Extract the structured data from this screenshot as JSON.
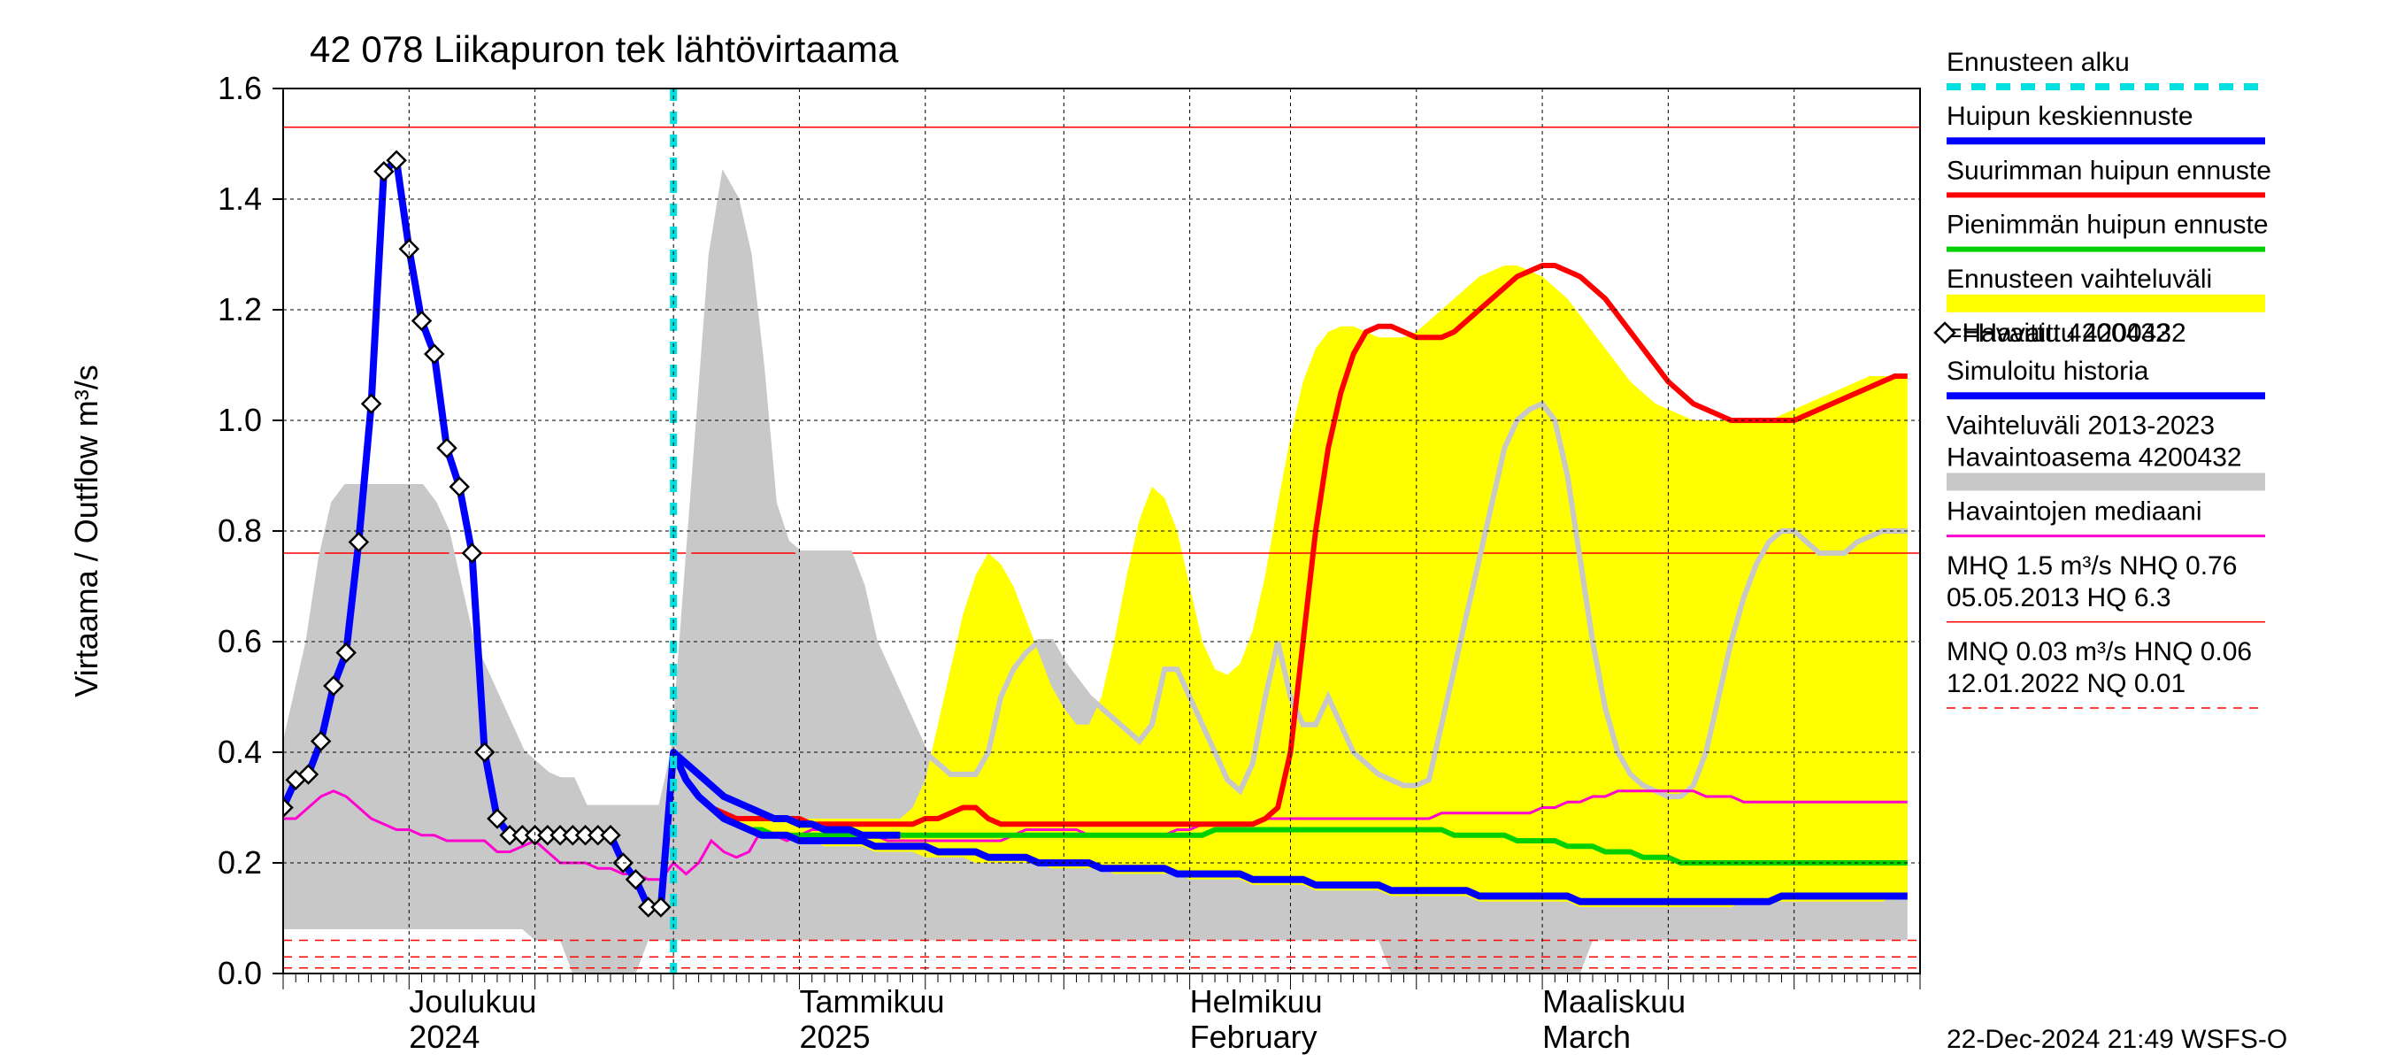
{
  "chart": {
    "title": "42 078 Liikapuron tek lähtövirtaama",
    "title_fontsize": 42,
    "ylabel": "Virtaama / Outflow    m³/s",
    "ylabel_fontsize": 36,
    "ylim": [
      0.0,
      1.6
    ],
    "ytick_step": 0.2,
    "yticks": [
      "0.0",
      "0.2",
      "0.4",
      "0.6",
      "0.8",
      "1.0",
      "1.2",
      "1.4",
      "1.6"
    ],
    "xrange_days": 130,
    "x_major_ticks": [
      {
        "pos": 10,
        "label_top": "Joulukuu",
        "label_bottom": "2024"
      },
      {
        "pos": 41,
        "label_top": "Tammikuu",
        "label_bottom": "2025"
      },
      {
        "pos": 72,
        "label_top": "Helmikuu",
        "label_bottom": "February"
      },
      {
        "pos": 100,
        "label_top": "Maaliskuu",
        "label_bottom": "March"
      }
    ],
    "x_minor_step": 1,
    "x_sub_major": [
      0,
      10,
      20,
      31,
      41,
      51,
      62,
      72,
      80,
      90,
      100,
      110,
      120,
      130
    ],
    "forecast_start_day": 31,
    "background_color": "#ffffff",
    "grid_color": "#000000",
    "grid_dash": "4,4",
    "footer": "22-Dec-2024 21:49 WSFS-O",
    "colors": {
      "forecast_start": "#00e0e0",
      "peak_mean": "#0000ff",
      "peak_max": "#ff0000",
      "peak_min": "#00d000",
      "forecast_band": "#ffff00",
      "observed_marker": "#000000",
      "observed_marker_fill": "#ffffff",
      "sim_history": "#0000ff",
      "hist_band": "#c8c8c8",
      "hist_median": "#ff00d0",
      "mhq_line": "#ff0000",
      "mnq_line": "#ff0000"
    },
    "line_widths": {
      "peak_mean": 8,
      "peak_max": 6,
      "peak_min": 6,
      "sim_history": 8,
      "hist_median": 3,
      "mhq": 1.5,
      "mnq": 1.5,
      "forecast_start": 8
    },
    "mhq_value": 1.53,
    "mhq2_value": 0.76,
    "mnq_values": [
      0.03,
      0.06,
      0.01
    ]
  },
  "legend": {
    "items": [
      {
        "label": "Ennusteen alku",
        "type": "dashed",
        "color": "#00e0e0",
        "width": 8
      },
      {
        "label": "Huipun keskiennuste",
        "type": "line",
        "color": "#0000ff",
        "width": 8
      },
      {
        "label": "Suurimman huipun ennuste",
        "type": "line",
        "color": "#ff0000",
        "width": 6
      },
      {
        "label": "Pienimmän huipun ennuste",
        "type": "line",
        "color": "#00d000",
        "width": 6
      },
      {
        "label": "Ennusteen vaihteluväli",
        "type": "band",
        "color": "#ffff00"
      },
      {
        "label": "=Havaittu 4200432",
        "type": "marker",
        "color": "#000000",
        "prefix_marker": true
      },
      {
        "label": "Simuloitu historia",
        "type": "line",
        "color": "#0000ff",
        "width": 8
      },
      {
        "label": "Vaihteluväli 2013-2023",
        "type": "none"
      },
      {
        "label": " Havaintoasema 4200432",
        "type": "band",
        "color": "#c8c8c8"
      },
      {
        "label": "Havaintojen mediaani",
        "type": "line",
        "color": "#ff00d0",
        "width": 3
      },
      {
        "label": "MHQ  1.5 m³/s NHQ 0.76",
        "type": "none"
      },
      {
        "label": "05.05.2013 HQ  6.3",
        "type": "line",
        "color": "#ff0000",
        "width": 1.5
      },
      {
        "label": "MNQ 0.03 m³/s HNQ 0.06",
        "type": "none"
      },
      {
        "label": "12.01.2022 NQ 0.01",
        "type": "dashed-thin",
        "color": "#ff0000",
        "width": 1.5
      }
    ]
  },
  "series": {
    "hist_band_upper": [
      0.4,
      0.5,
      0.6,
      0.75,
      0.85,
      0.88,
      0.88,
      0.88,
      0.88,
      0.88,
      0.88,
      0.88,
      0.85,
      0.8,
      0.7,
      0.6,
      0.55,
      0.5,
      0.45,
      0.4,
      0.38,
      0.36,
      0.35,
      0.35,
      0.3,
      0.3,
      0.3,
      0.3,
      0.3,
      0.3,
      0.3,
      0.4,
      0.7,
      1.0,
      1.3,
      1.44,
      1.4,
      1.3,
      1.1,
      0.85,
      0.78,
      0.76,
      0.76,
      0.76,
      0.76,
      0.76,
      0.7,
      0.6,
      0.55,
      0.5,
      0.45,
      0.4,
      0.38,
      0.36,
      0.36,
      0.36,
      0.4,
      0.5,
      0.55,
      0.58,
      0.6,
      0.6,
      0.56,
      0.53,
      0.5,
      0.48,
      0.46,
      0.44,
      0.42,
      0.45,
      0.55,
      0.55,
      0.5,
      0.45,
      0.4,
      0.35,
      0.33,
      0.38,
      0.5,
      0.6,
      0.5,
      0.45,
      0.45,
      0.5,
      0.45,
      0.4,
      0.38,
      0.36,
      0.35,
      0.34,
      0.34,
      0.35,
      0.45,
      0.55,
      0.65,
      0.75,
      0.85,
      0.95,
      1.0,
      1.02,
      1.03,
      1.0,
      0.9,
      0.75,
      0.6,
      0.48,
      0.4,
      0.36,
      0.34,
      0.33,
      0.32,
      0.32,
      0.34,
      0.4,
      0.5,
      0.6,
      0.68,
      0.74,
      0.78,
      0.8,
      0.8,
      0.78,
      0.76,
      0.76,
      0.76,
      0.78,
      0.79,
      0.8,
      0.8,
      0.8
    ],
    "hist_band_lower": [
      0.08,
      0.08,
      0.08,
      0.08,
      0.08,
      0.08,
      0.08,
      0.08,
      0.08,
      0.08,
      0.08,
      0.08,
      0.08,
      0.08,
      0.08,
      0.08,
      0.08,
      0.08,
      0.08,
      0.08,
      0.06,
      0.06,
      0.06,
      0.0,
      0.0,
      0.0,
      0.0,
      0.0,
      0.0,
      0.06,
      0.06,
      0.06,
      0.06,
      0.06,
      0.06,
      0.06,
      0.06,
      0.06,
      0.06,
      0.06,
      0.06,
      0.06,
      0.06,
      0.06,
      0.06,
      0.06,
      0.06,
      0.06,
      0.06,
      0.06,
      0.06,
      0.06,
      0.06,
      0.06,
      0.06,
      0.06,
      0.06,
      0.06,
      0.06,
      0.06,
      0.06,
      0.06,
      0.06,
      0.06,
      0.06,
      0.06,
      0.06,
      0.06,
      0.06,
      0.06,
      0.06,
      0.06,
      0.06,
      0.06,
      0.06,
      0.06,
      0.06,
      0.06,
      0.06,
      0.06,
      0.06,
      0.06,
      0.06,
      0.06,
      0.06,
      0.06,
      0.06,
      0.06,
      0.0,
      0.0,
      0.0,
      0.0,
      0.0,
      0.0,
      0.0,
      0.0,
      0.0,
      0.0,
      0.0,
      0.0,
      0.0,
      0.0,
      0.0,
      0.0,
      0.06,
      0.06,
      0.06,
      0.06,
      0.06,
      0.06,
      0.06,
      0.06,
      0.06,
      0.06,
      0.06,
      0.06,
      0.06,
      0.06,
      0.06,
      0.06,
      0.06,
      0.06,
      0.06,
      0.06,
      0.06,
      0.06,
      0.06,
      0.06,
      0.06,
      0.06
    ],
    "forecast_band_upper": [
      0.4,
      0.35,
      0.32,
      0.3,
      0.29,
      0.28,
      0.28,
      0.28,
      0.28,
      0.28,
      0.28,
      0.28,
      0.28,
      0.28,
      0.28,
      0.28,
      0.28,
      0.28,
      0.28,
      0.3,
      0.35,
      0.45,
      0.55,
      0.65,
      0.72,
      0.76,
      0.74,
      0.7,
      0.64,
      0.58,
      0.52,
      0.48,
      0.45,
      0.45,
      0.5,
      0.6,
      0.72,
      0.82,
      0.88,
      0.86,
      0.8,
      0.7,
      0.6,
      0.55,
      0.54,
      0.56,
      0.62,
      0.72,
      0.85,
      0.97,
      1.07,
      1.13,
      1.16,
      1.17,
      1.17,
      1.16,
      1.15,
      1.15,
      1.15,
      1.16,
      1.18,
      1.2,
      1.22,
      1.24,
      1.26,
      1.27,
      1.28,
      1.28,
      1.27,
      1.26,
      1.24,
      1.22,
      1.19,
      1.16,
      1.13,
      1.1,
      1.07,
      1.05,
      1.03,
      1.02,
      1.01,
      1.0,
      1.0,
      1.0,
      1.0,
      1.0,
      1.0,
      1.0,
      1.01,
      1.02,
      1.03,
      1.04,
      1.05,
      1.06,
      1.07,
      1.08,
      1.08,
      1.08,
      1.08
    ],
    "forecast_band_lower": [
      0.4,
      0.35,
      0.32,
      0.3,
      0.28,
      0.27,
      0.26,
      0.25,
      0.25,
      0.24,
      0.24,
      0.24,
      0.23,
      0.23,
      0.23,
      0.23,
      0.22,
      0.22,
      0.22,
      0.22,
      0.21,
      0.21,
      0.21,
      0.21,
      0.2,
      0.2,
      0.2,
      0.2,
      0.2,
      0.2,
      0.19,
      0.19,
      0.19,
      0.19,
      0.19,
      0.18,
      0.18,
      0.18,
      0.18,
      0.18,
      0.18,
      0.17,
      0.17,
      0.17,
      0.17,
      0.17,
      0.16,
      0.16,
      0.16,
      0.16,
      0.16,
      0.15,
      0.15,
      0.15,
      0.15,
      0.15,
      0.15,
      0.14,
      0.14,
      0.14,
      0.14,
      0.14,
      0.14,
      0.14,
      0.13,
      0.13,
      0.13,
      0.13,
      0.13,
      0.13,
      0.13,
      0.13,
      0.12,
      0.12,
      0.12,
      0.12,
      0.12,
      0.12,
      0.12,
      0.12,
      0.12,
      0.12,
      0.12,
      0.12,
      0.12,
      0.13,
      0.13,
      0.13,
      0.13,
      0.13,
      0.13,
      0.13,
      0.13,
      0.13,
      0.13,
      0.13,
      0.13,
      0.14,
      0.14
    ],
    "peak_max": [
      0.4,
      0.35,
      0.32,
      0.3,
      0.29,
      0.28,
      0.28,
      0.28,
      0.28,
      0.28,
      0.28,
      0.27,
      0.27,
      0.27,
      0.27,
      0.27,
      0.27,
      0.27,
      0.27,
      0.27,
      0.28,
      0.28,
      0.29,
      0.3,
      0.3,
      0.28,
      0.27,
      0.27,
      0.27,
      0.27,
      0.27,
      0.27,
      0.27,
      0.27,
      0.27,
      0.27,
      0.27,
      0.27,
      0.27,
      0.27,
      0.27,
      0.27,
      0.27,
      0.27,
      0.27,
      0.27,
      0.27,
      0.28,
      0.3,
      0.4,
      0.6,
      0.8,
      0.95,
      1.05,
      1.12,
      1.16,
      1.17,
      1.17,
      1.16,
      1.15,
      1.15,
      1.15,
      1.16,
      1.18,
      1.2,
      1.22,
      1.24,
      1.26,
      1.27,
      1.28,
      1.28,
      1.27,
      1.26,
      1.24,
      1.22,
      1.19,
      1.16,
      1.13,
      1.1,
      1.07,
      1.05,
      1.03,
      1.02,
      1.01,
      1.0,
      1.0,
      1.0,
      1.0,
      1.0,
      1.0,
      1.01,
      1.02,
      1.03,
      1.04,
      1.05,
      1.06,
      1.07,
      1.08,
      1.08
    ],
    "peak_mean": [
      0.4,
      0.35,
      0.32,
      0.3,
      0.28,
      0.27,
      0.26,
      0.25,
      0.25,
      0.25,
      0.24,
      0.24,
      0.24,
      0.24,
      0.24,
      0.24,
      0.23,
      0.23,
      0.23,
      0.23,
      0.23,
      0.22,
      0.22,
      0.22,
      0.22,
      0.21,
      0.21,
      0.21,
      0.21,
      0.2,
      0.2,
      0.2,
      0.2,
      0.2,
      0.19,
      0.19,
      0.19,
      0.19,
      0.19,
      0.19,
      0.18,
      0.18,
      0.18,
      0.18,
      0.18,
      0.18,
      0.17,
      0.17,
      0.17,
      0.17,
      0.17,
      0.16,
      0.16,
      0.16,
      0.16,
      0.16,
      0.16,
      0.15,
      0.15,
      0.15,
      0.15,
      0.15,
      0.15,
      0.15,
      0.14,
      0.14,
      0.14,
      0.14,
      0.14,
      0.14,
      0.14,
      0.14,
      0.13,
      0.13,
      0.13,
      0.13,
      0.13,
      0.13,
      0.13,
      0.13,
      0.13,
      0.13,
      0.13,
      0.13,
      0.13,
      0.13,
      0.13,
      0.13,
      0.14,
      0.14,
      0.14,
      0.14,
      0.14,
      0.14,
      0.14,
      0.14,
      0.14,
      0.14,
      0.14
    ],
    "peak_min": [
      0.4,
      0.35,
      0.32,
      0.3,
      0.28,
      0.27,
      0.26,
      0.26,
      0.25,
      0.25,
      0.25,
      0.25,
      0.25,
      0.25,
      0.25,
      0.25,
      0.25,
      0.25,
      0.25,
      0.25,
      0.25,
      0.25,
      0.25,
      0.25,
      0.25,
      0.25,
      0.25,
      0.25,
      0.25,
      0.25,
      0.25,
      0.25,
      0.25,
      0.25,
      0.25,
      0.25,
      0.25,
      0.25,
      0.25,
      0.25,
      0.25,
      0.25,
      0.25,
      0.26,
      0.26,
      0.26,
      0.26,
      0.26,
      0.26,
      0.26,
      0.26,
      0.26,
      0.26,
      0.26,
      0.26,
      0.26,
      0.26,
      0.26,
      0.26,
      0.26,
      0.26,
      0.26,
      0.25,
      0.25,
      0.25,
      0.25,
      0.25,
      0.24,
      0.24,
      0.24,
      0.24,
      0.23,
      0.23,
      0.23,
      0.22,
      0.22,
      0.22,
      0.21,
      0.21,
      0.21,
      0.2,
      0.2,
      0.2,
      0.2,
      0.2,
      0.2,
      0.2,
      0.2,
      0.2,
      0.2,
      0.2,
      0.2,
      0.2,
      0.2,
      0.2,
      0.2,
      0.2,
      0.2,
      0.2
    ],
    "hist_median": [
      0.28,
      0.28,
      0.3,
      0.32,
      0.33,
      0.32,
      0.3,
      0.28,
      0.27,
      0.26,
      0.26,
      0.25,
      0.25,
      0.24,
      0.24,
      0.24,
      0.24,
      0.22,
      0.22,
      0.23,
      0.24,
      0.22,
      0.2,
      0.2,
      0.2,
      0.19,
      0.19,
      0.18,
      0.18,
      0.17,
      0.17,
      0.2,
      0.18,
      0.2,
      0.24,
      0.22,
      0.21,
      0.22,
      0.26,
      0.25,
      0.24,
      0.25,
      0.26,
      0.26,
      0.26,
      0.25,
      0.25,
      0.25,
      0.24,
      0.24,
      0.24,
      0.24,
      0.24,
      0.24,
      0.24,
      0.24,
      0.24,
      0.24,
      0.25,
      0.26,
      0.26,
      0.26,
      0.26,
      0.26,
      0.25,
      0.25,
      0.25,
      0.25,
      0.25,
      0.25,
      0.25,
      0.26,
      0.26,
      0.27,
      0.27,
      0.27,
      0.27,
      0.27,
      0.28,
      0.28,
      0.28,
      0.28,
      0.28,
      0.28,
      0.28,
      0.28,
      0.28,
      0.28,
      0.28,
      0.28,
      0.28,
      0.28,
      0.29,
      0.29,
      0.29,
      0.29,
      0.29,
      0.29,
      0.29,
      0.29,
      0.3,
      0.3,
      0.31,
      0.31,
      0.32,
      0.32,
      0.33,
      0.33,
      0.33,
      0.33,
      0.33,
      0.33,
      0.33,
      0.32,
      0.32,
      0.32,
      0.31,
      0.31,
      0.31,
      0.31,
      0.31,
      0.31,
      0.31,
      0.31,
      0.31,
      0.31,
      0.31,
      0.31,
      0.31,
      0.31
    ],
    "sim_history": [
      0.3,
      0.35,
      0.36,
      0.42,
      0.52,
      0.58,
      0.78,
      1.03,
      1.45,
      1.47,
      1.31,
      1.18,
      1.12,
      0.95,
      0.88,
      0.76,
      0.4,
      0.28,
      0.25,
      0.25,
      0.25,
      0.25,
      0.25,
      0.25,
      0.25,
      0.25,
      0.25,
      0.2,
      0.17,
      0.12,
      0.12,
      0.4,
      0.38,
      0.36,
      0.34,
      0.32,
      0.31,
      0.3,
      0.29,
      0.28,
      0.28,
      0.27,
      0.27,
      0.26,
      0.26,
      0.26,
      0.25,
      0.25,
      0.25,
      0.25
    ],
    "observed_points": [
      {
        "x": 0,
        "y": 0.3
      },
      {
        "x": 1,
        "y": 0.35
      },
      {
        "x": 2,
        "y": 0.36
      },
      {
        "x": 3,
        "y": 0.42
      },
      {
        "x": 4,
        "y": 0.52
      },
      {
        "x": 5,
        "y": 0.58
      },
      {
        "x": 6,
        "y": 0.78
      },
      {
        "x": 7,
        "y": 1.03
      },
      {
        "x": 8,
        "y": 1.45
      },
      {
        "x": 9,
        "y": 1.47
      },
      {
        "x": 10,
        "y": 1.31
      },
      {
        "x": 11,
        "y": 1.18
      },
      {
        "x": 12,
        "y": 1.12
      },
      {
        "x": 13,
        "y": 0.95
      },
      {
        "x": 14,
        "y": 0.88
      },
      {
        "x": 15,
        "y": 0.76
      },
      {
        "x": 16,
        "y": 0.4
      },
      {
        "x": 17,
        "y": 0.28
      },
      {
        "x": 18,
        "y": 0.25
      },
      {
        "x": 19,
        "y": 0.25
      },
      {
        "x": 20,
        "y": 0.25
      },
      {
        "x": 21,
        "y": 0.25
      },
      {
        "x": 22,
        "y": 0.25
      },
      {
        "x": 23,
        "y": 0.25
      },
      {
        "x": 24,
        "y": 0.25
      },
      {
        "x": 25,
        "y": 0.25
      },
      {
        "x": 26,
        "y": 0.25
      },
      {
        "x": 27,
        "y": 0.2
      },
      {
        "x": 28,
        "y": 0.17
      },
      {
        "x": 29,
        "y": 0.12
      },
      {
        "x": 30,
        "y": 0.12
      }
    ]
  }
}
